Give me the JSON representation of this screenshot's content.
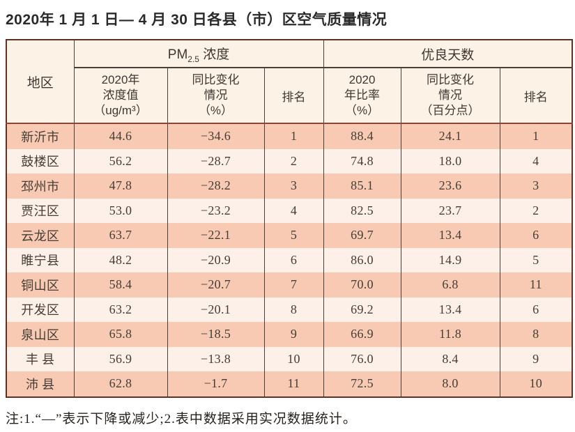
{
  "title": "2020年 1 月 1 日— 4 月 30 日各县（市）区空气质量情况",
  "table": {
    "header": {
      "region": "地区",
      "pm_group_prefix": "PM",
      "pm_group_sub": "2.5",
      "pm_group_suffix": " 浓度",
      "good_days_group": "优良天数",
      "pm_value": "2020年\n浓度值\n（ug/m³）",
      "pm_change": "同比变化\n情况\n（%）",
      "pm_rank": "排名",
      "gd_ratio": "2020\n年比率\n（%）",
      "gd_change": "同比变化\n情况\n（百分点）",
      "gd_rank": "排名"
    },
    "rows": [
      {
        "region": "新沂市",
        "pm_value": "44.6",
        "pm_change": "−34.6",
        "pm_rank": "1",
        "gd_ratio": "88.4",
        "gd_change": "24.1",
        "gd_rank": "1"
      },
      {
        "region": "鼓楼区",
        "pm_value": "56.2",
        "pm_change": "−28.7",
        "pm_rank": "2",
        "gd_ratio": "74.8",
        "gd_change": "18.0",
        "gd_rank": "4"
      },
      {
        "region": "邳州市",
        "pm_value": "47.8",
        "pm_change": "−28.2",
        "pm_rank": "3",
        "gd_ratio": "85.1",
        "gd_change": "23.6",
        "gd_rank": "3"
      },
      {
        "region": "贾汪区",
        "pm_value": "53.0",
        "pm_change": "−23.2",
        "pm_rank": "4",
        "gd_ratio": "82.5",
        "gd_change": "23.7",
        "gd_rank": "2"
      },
      {
        "region": "云龙区",
        "pm_value": "63.7",
        "pm_change": "−22.1",
        "pm_rank": "5",
        "gd_ratio": "69.7",
        "gd_change": "13.4",
        "gd_rank": "6"
      },
      {
        "region": "睢宁县",
        "pm_value": "48.2",
        "pm_change": "−20.9",
        "pm_rank": "6",
        "gd_ratio": "86.0",
        "gd_change": "14.9",
        "gd_rank": "5"
      },
      {
        "region": "铜山区",
        "pm_value": "58.4",
        "pm_change": "−20.7",
        "pm_rank": "7",
        "gd_ratio": "70.0",
        "gd_change": "6.8",
        "gd_rank": "11"
      },
      {
        "region": "开发区",
        "pm_value": "63.2",
        "pm_change": "−20.1",
        "pm_rank": "8",
        "gd_ratio": "69.2",
        "gd_change": "13.4",
        "gd_rank": "6"
      },
      {
        "region": "泉山区",
        "pm_value": "65.8",
        "pm_change": "−18.5",
        "pm_rank": "9",
        "gd_ratio": "66.9",
        "gd_change": "11.8",
        "gd_rank": "8"
      },
      {
        "region": "丰 县",
        "pm_value": "56.9",
        "pm_change": "−13.8",
        "pm_rank": "10",
        "gd_ratio": "76.0",
        "gd_change": "8.4",
        "gd_rank": "9"
      },
      {
        "region": "沛 县",
        "pm_value": "62.8",
        "pm_change": "−1.7",
        "pm_rank": "11",
        "gd_ratio": "72.5",
        "gd_change": "8.0",
        "gd_rank": "10"
      }
    ]
  },
  "note": "注:1.“—”表示下降或减少;2.表中数据采用实况数据统计。",
  "colors": {
    "row_odd_bg": "#f8cab4",
    "row_even_bg": "#fdf0e8",
    "header_bg": "#fdf2e6",
    "border_inner": "#4a3f38",
    "border_outer": "#5d3126",
    "header_separator": "#8a4335"
  }
}
